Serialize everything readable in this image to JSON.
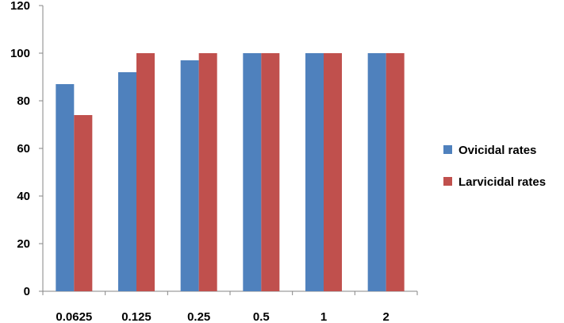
{
  "chart_data": {
    "type": "bar",
    "categories": [
      "0.0625",
      "0.125",
      "0.25",
      "0.5",
      "1",
      "2"
    ],
    "series": [
      {
        "name": "Ovicidal rates",
        "values": [
          87,
          92,
          97,
          100,
          100,
          100
        ],
        "color": "#4F81BD"
      },
      {
        "name": "Larvicidal rates",
        "values": [
          74,
          100,
          100,
          100,
          100,
          100
        ],
        "color": "#C0504D"
      }
    ],
    "ylim": [
      0,
      120
    ],
    "yticks": [
      "0",
      "20",
      "40",
      "60",
      "80",
      "100",
      "120"
    ],
    "legend_position": "right",
    "grid": false
  }
}
